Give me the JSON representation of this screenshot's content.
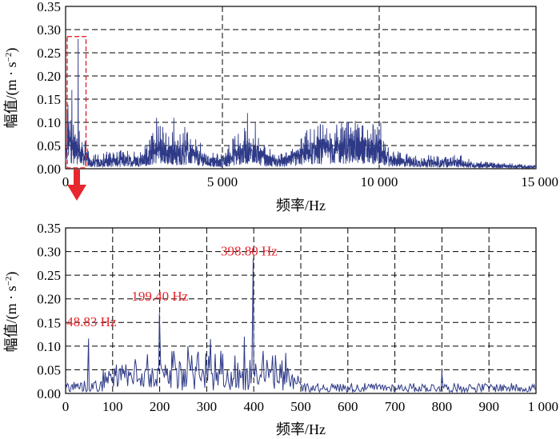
{
  "chart_data": [
    {
      "type": "line",
      "name": "full-spectrum",
      "xlabel": "频率/Hz",
      "ylabel_prefix": "幅值/(m · s",
      "ylabel_sup": "−2",
      "ylabel_suffix": ")",
      "xlim": [
        0,
        15000
      ],
      "ylim": [
        0,
        0.35
      ],
      "xticks": [
        0,
        5000,
        10000,
        15000
      ],
      "xtick_labels": [
        "0",
        "5 000",
        "10 000",
        "15 000"
      ],
      "yticks": [
        0,
        0.05,
        0.1,
        0.15,
        0.2,
        0.25,
        0.3,
        0.35
      ],
      "ytick_labels": [
        "0.00",
        "0.05",
        "0.10",
        "0.15",
        "0.20",
        "0.25",
        "0.30",
        "0.35"
      ],
      "grid": "dashed",
      "series_color": "#2e3a87",
      "highlight_range": {
        "x": [
          0,
          600
        ],
        "y": [
          0,
          0.285
        ],
        "color": "#e8262d"
      },
      "spectrum_envelope": {
        "x": [
          0,
          50,
          100,
          200,
          400,
          600,
          800,
          1000,
          1500,
          2000,
          2500,
          2800,
          3000,
          3200,
          3500,
          4000,
          4300,
          4600,
          5000,
          5300,
          5600,
          5900,
          6100,
          6400,
          6800,
          7200,
          7600,
          8000,
          8500,
          9000,
          9300,
          9600,
          9900,
          10100,
          10400,
          11000,
          12000,
          12500,
          13000,
          14000,
          15000
        ],
        "y": [
          0.02,
          0.08,
          0.1,
          0.07,
          0.06,
          0.04,
          0.02,
          0.02,
          0.025,
          0.025,
          0.03,
          0.05,
          0.07,
          0.05,
          0.05,
          0.05,
          0.035,
          0.025,
          0.02,
          0.04,
          0.055,
          0.06,
          0.05,
          0.03,
          0.02,
          0.03,
          0.05,
          0.06,
          0.065,
          0.065,
          0.07,
          0.065,
          0.06,
          0.04,
          0.025,
          0.02,
          0.018,
          0.02,
          0.012,
          0.008,
          0.005
        ]
      },
      "spectrum_peaks": {
        "x": [
          48.83,
          199.4,
          398.8,
          2900,
          3100,
          3450,
          3800,
          5800,
          6050,
          8800,
          9950,
          10050
        ],
        "y": [
          0.12,
          0.17,
          0.28,
          0.11,
          0.09,
          0.11,
          0.09,
          0.12,
          0.1,
          0.1,
          0.09,
          0.1
        ]
      }
    },
    {
      "type": "line",
      "name": "zoomed-spectrum",
      "xlabel": "频率/Hz",
      "ylabel_prefix": "幅值/(m · s",
      "ylabel_sup": "−2",
      "ylabel_suffix": ")",
      "xlim": [
        0,
        1000
      ],
      "ylim": [
        0,
        0.35
      ],
      "xticks": [
        0,
        100,
        200,
        300,
        400,
        500,
        600,
        700,
        800,
        900,
        1000
      ],
      "xtick_labels": [
        "0",
        "100",
        "200",
        "300",
        "400",
        "500",
        "600",
        "700",
        "800",
        "900",
        "1 000"
      ],
      "yticks": [
        0,
        0.05,
        0.1,
        0.15,
        0.2,
        0.25,
        0.3,
        0.35
      ],
      "ytick_labels": [
        "0.00",
        "0.05",
        "0.10",
        "0.15",
        "0.20",
        "0.25",
        "0.30",
        "0.35"
      ],
      "grid": "dashed",
      "series_color": "#2e3a87",
      "annotations": [
        {
          "text": "48.83 Hz",
          "x": 48.83,
          "y": 0.116,
          "label_at": [
            2,
            0.142
          ]
        },
        {
          "text": "199.40 Hz",
          "x": 199.4,
          "y": 0.17,
          "label_at": [
            140,
            0.196
          ]
        },
        {
          "text": "398.80 Hz",
          "x": 398.8,
          "y": 0.285,
          "label_at": [
            330,
            0.292
          ]
        }
      ],
      "peaks": {
        "x": [
          48.83,
          100,
          120,
          150,
          199.4,
          230,
          260,
          280,
          308,
          330,
          360,
          380,
          398.8,
          420,
          440,
          460,
          800
        ],
        "y": [
          0.116,
          0.035,
          0.06,
          0.06,
          0.17,
          0.09,
          0.1,
          0.08,
          0.115,
          0.09,
          0.08,
          0.12,
          0.285,
          0.09,
          0.08,
          0.07,
          0.045
        ]
      }
    }
  ]
}
